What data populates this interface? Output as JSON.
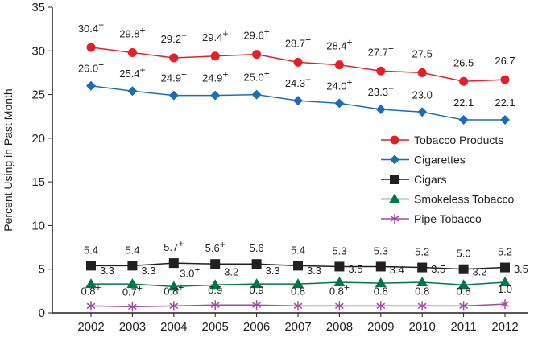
{
  "chart_data": {
    "type": "line",
    "title": "",
    "xlabel": "",
    "ylabel": "Percent Using in Past Month",
    "ylim": [
      0,
      35
    ],
    "yticks": [
      0,
      5,
      10,
      15,
      20,
      25,
      30,
      35
    ],
    "x": [
      "2002",
      "2003",
      "2004",
      "2005",
      "2006",
      "2007",
      "2008",
      "2009",
      "2010",
      "2011",
      "2012"
    ],
    "grid": false,
    "legend_position": "right",
    "series": [
      {
        "name": "Tobacco Products",
        "color": "#e3202a",
        "marker": "circle",
        "values": [
          30.4,
          29.8,
          29.2,
          29.4,
          29.6,
          28.7,
          28.4,
          27.7,
          27.5,
          26.5,
          26.7
        ],
        "labels": [
          "30.4",
          "29.8",
          "29.2",
          "29.4",
          "29.6",
          "28.7",
          "28.4",
          "27.7",
          "27.5",
          "26.5",
          "26.7"
        ],
        "plus": [
          true,
          true,
          true,
          true,
          true,
          true,
          true,
          true,
          false,
          false,
          false
        ]
      },
      {
        "name": "Cigarettes",
        "color": "#1e6db4",
        "marker": "diamond",
        "values": [
          26.0,
          25.4,
          24.9,
          24.9,
          25.0,
          24.3,
          24.0,
          23.3,
          23.0,
          22.1,
          22.1
        ],
        "labels": [
          "26.0",
          "25.4",
          "24.9",
          "24.9",
          "25.0",
          "24.3",
          "24.0",
          "23.3",
          "23.0",
          "22.1",
          "22.1"
        ],
        "plus": [
          true,
          true,
          true,
          true,
          true,
          true,
          true,
          true,
          false,
          false,
          false
        ]
      },
      {
        "name": "Cigars",
        "color": "#231f20",
        "marker": "square",
        "values": [
          5.4,
          5.4,
          5.7,
          5.6,
          5.6,
          5.4,
          5.3,
          5.3,
          5.2,
          5.0,
          5.2
        ],
        "labels": [
          "5.4",
          "5.4",
          "5.7",
          "5.6",
          "5.6",
          "5.4",
          "5.3",
          "5.3",
          "5.2",
          "5.0",
          "5.2"
        ],
        "plus": [
          false,
          false,
          true,
          true,
          false,
          false,
          false,
          false,
          false,
          false,
          false
        ]
      },
      {
        "name": "Smokeless Tobacco",
        "color": "#00774a",
        "marker": "triangle",
        "values": [
          3.3,
          3.3,
          3.0,
          3.2,
          3.3,
          3.3,
          3.5,
          3.4,
          3.5,
          3.2,
          3.5
        ],
        "labels": [
          "3.3",
          "3.3",
          "3.0",
          "3.2",
          "3.3",
          "3.3",
          "3.5",
          "3.4",
          "3.5",
          "3.2",
          "3.5"
        ],
        "plus": [
          false,
          false,
          true,
          false,
          false,
          false,
          false,
          false,
          false,
          false,
          false
        ]
      },
      {
        "name": "Pipe Tobacco",
        "color": "#9b4ea0",
        "marker": "asterisk",
        "values": [
          0.8,
          0.7,
          0.8,
          0.9,
          0.9,
          0.8,
          0.8,
          0.8,
          0.8,
          0.8,
          1.0
        ],
        "labels": [
          "0.8",
          "0.7",
          "0.8",
          "0.9",
          "0.9",
          "0.8",
          "0.8",
          "0.8",
          "0.8",
          "0.8",
          "1.0"
        ],
        "plus": [
          true,
          true,
          true,
          false,
          false,
          false,
          true,
          false,
          false,
          false,
          false
        ]
      }
    ]
  }
}
